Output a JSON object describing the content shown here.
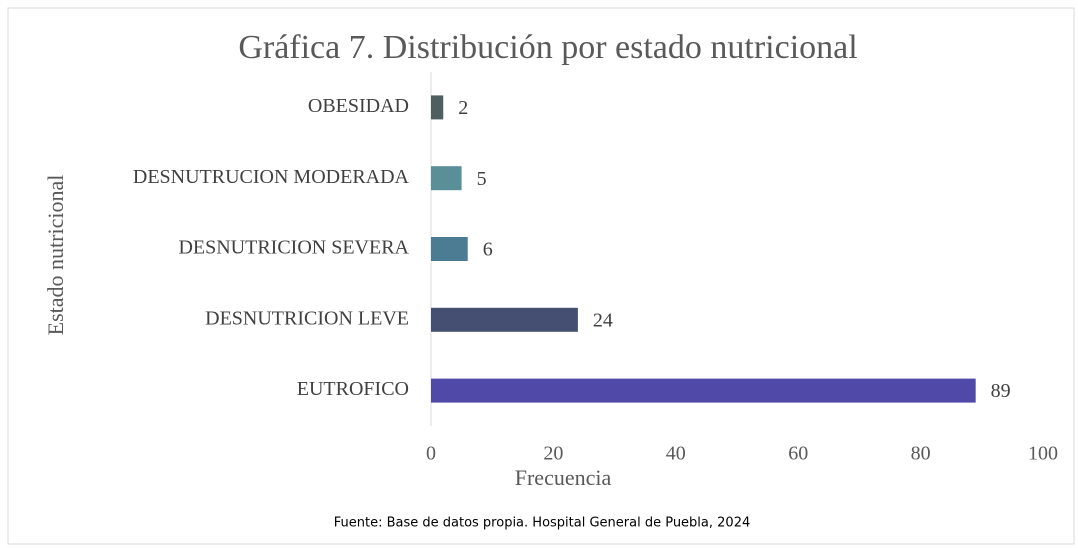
{
  "chart_data": {
    "type": "bar",
    "orientation": "horizontal",
    "title": "Gráfica 7. Distribución por estado nutricional",
    "x_label": "Frecuencia",
    "y_label": "Estado nutricional",
    "categories": [
      "OBESIDAD",
      "DESNUTRUCION MODERADA",
      "DESNUTRICION SEVERA",
      "DESNUTRICION LEVE",
      "EUTROFICO"
    ],
    "values": [
      2,
      5,
      6,
      24,
      89
    ],
    "colors": [
      "#4f5e5e",
      "#5a8f97",
      "#4c7b94",
      "#444f72",
      "#5049a8"
    ],
    "xlim": [
      0,
      100
    ],
    "xticks": [
      0,
      20,
      40,
      60,
      80,
      100
    ],
    "source": "Fuente: Base de datos propia. Hospital General de Puebla, 2024"
  }
}
